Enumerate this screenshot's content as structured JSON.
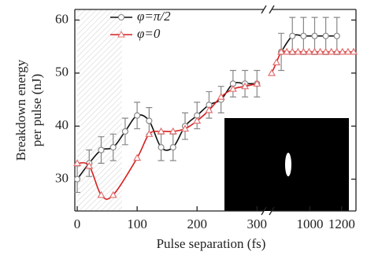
{
  "chart_data": {
    "type": "line",
    "ylabel": [
      "Breakdown energy",
      "per pulse (nJ)"
    ],
    "xlabel": "Pulse separation (fs)",
    "ylim": [
      24,
      62
    ],
    "yticks": [
      30,
      40,
      50,
      60
    ],
    "x_segments": [
      {
        "xlim": [
          -4,
          318
        ],
        "xticks": [
          0,
          100,
          200,
          300
        ]
      },
      {
        "xlim": [
          760,
          1290
        ],
        "xticks": [
          1000,
          1200
        ]
      }
    ],
    "legend": "upper left",
    "series": [
      {
        "name": "φ=π/2",
        "color": "#111111",
        "marker_color": "#888888",
        "marker": "circle",
        "segments": [
          {
            "x": [
              0,
              20,
              40,
              60,
              80,
              100,
              120,
              140,
              160,
              180,
              200,
              220,
              240,
              260,
              280,
              300
            ],
            "values": [
              30,
              33,
              35.5,
              36,
              39,
              42,
              41,
              36,
              36,
              40,
              42,
              44,
              45,
              48,
              48,
              48
            ],
            "errors": [
              2.5,
              2.5,
              2.5,
              2.5,
              2.5,
              2.5,
              2.5,
              2.5,
              2.5,
              2.5,
              2.5,
              2.5,
              2.5,
              2.5,
              2.5,
              2.5
            ]
          },
          {
            "x": [
              820,
              890,
              960,
              1030,
              1100,
              1170
            ],
            "values": [
              54,
              57,
              57,
              57,
              57,
              57
            ],
            "errors": [
              3.5,
              3.5,
              3.5,
              3.5,
              3.5,
              3.5
            ]
          }
        ]
      },
      {
        "name": "φ=0",
        "color": "#d62020",
        "marker_color": "#e07070",
        "marker": "triangle",
        "segments": [
          {
            "x": [
              0,
              20,
              40,
              60,
              100,
              120,
              140,
              160,
              180,
              200,
              220,
              240,
              260,
              280,
              300
            ],
            "values": [
              33,
              32.5,
              27,
              27,
              34,
              38.5,
              39,
              39,
              39.5,
              41,
              43,
              45.5,
              47,
              47.5,
              48
            ]
          },
          {
            "x": [
              760,
              790,
              820,
              855,
              890,
              925,
              960,
              995,
              1030,
              1065,
              1100,
              1135,
              1170,
              1205,
              1240,
              1275
            ],
            "values": [
              50,
              52,
              54,
              54,
              54,
              54,
              54,
              54,
              54,
              54,
              54,
              54,
              54,
              54,
              54,
              54
            ]
          }
        ]
      }
    ]
  }
}
